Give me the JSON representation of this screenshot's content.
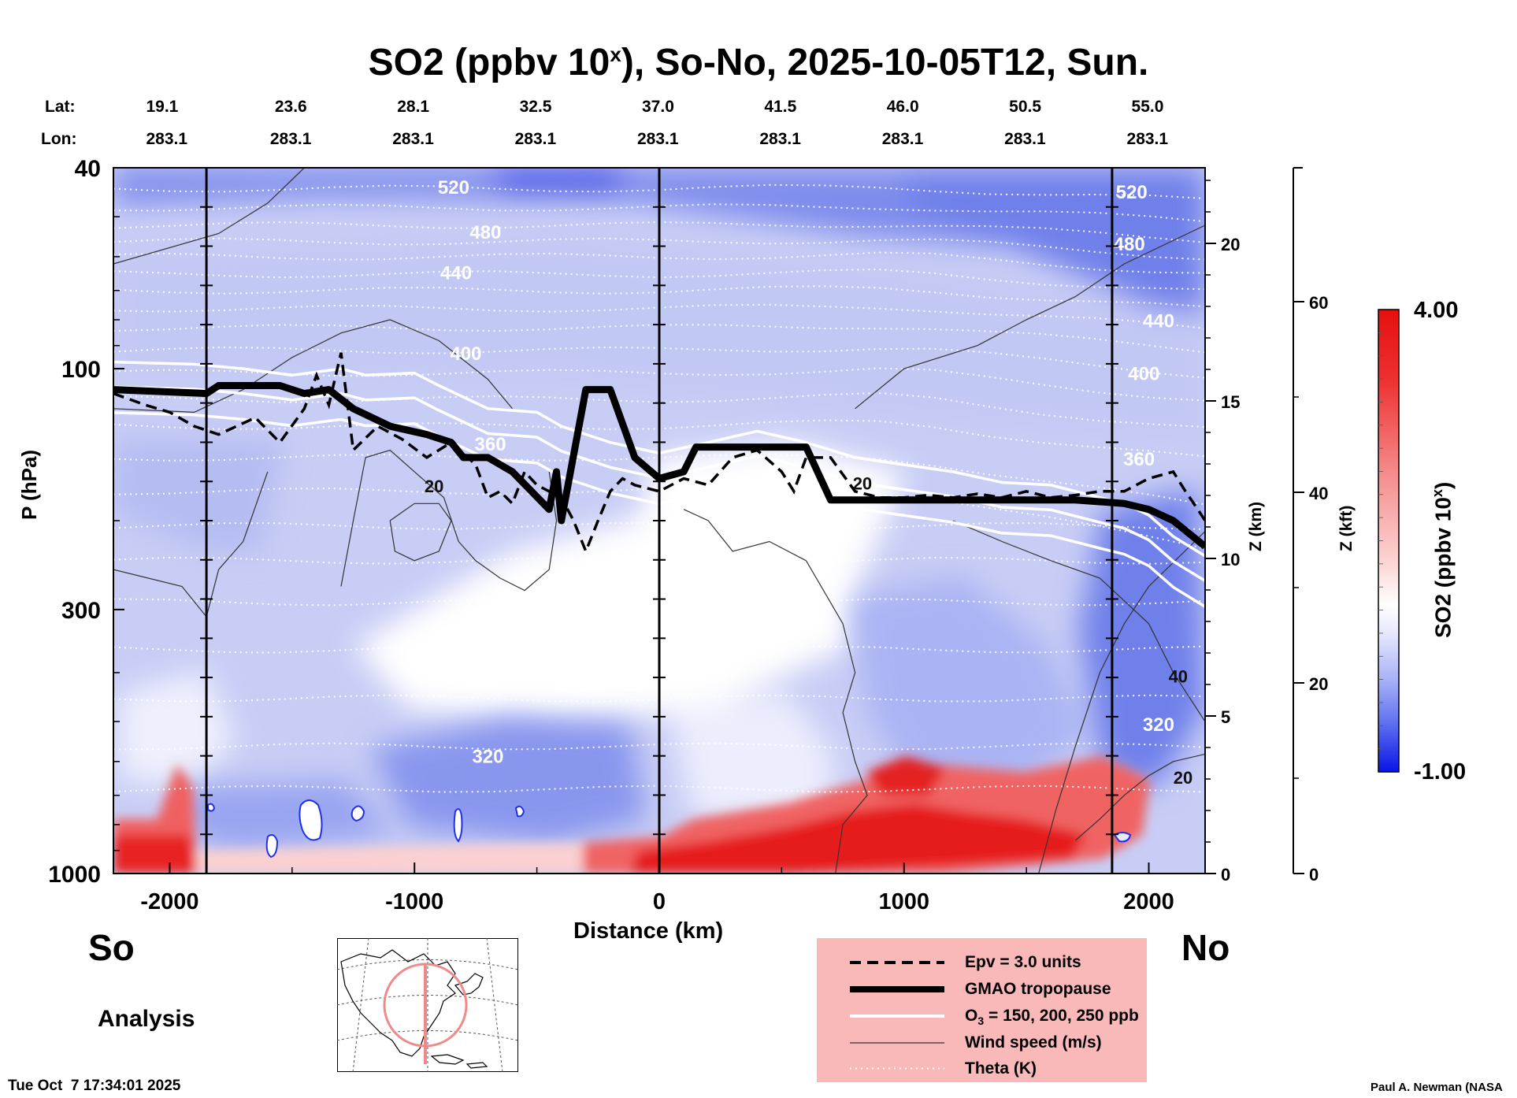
{
  "title": {
    "prefix": "SO2 (ppbv 10",
    "sup": "x",
    "suffix": "), So-No, 2025-10-05T12, Sun."
  },
  "lat_label": "Lat:",
  "lon_label": "Lon:",
  "lat_values": [
    "19.1",
    "23.6",
    "28.1",
    "32.5",
    "37.0",
    "41.5",
    "46.0",
    "50.5",
    "55.0"
  ],
  "lon_values": [
    "283.1",
    "283.1",
    "283.1",
    "283.1",
    "283.1",
    "283.1",
    "283.1",
    "283.1",
    "283.1"
  ],
  "direction_left": "So",
  "direction_right": "No",
  "analysis_label": "Analysis",
  "timestamp": "Tue Oct  7 17:34:01 2025",
  "credit": "Paul A. Newman (NASA",
  "legend": [
    {
      "label": "Epv = 3.0 units",
      "style": "dashed-black"
    },
    {
      "label": "GMAO tropopause",
      "style": "thick-black"
    },
    {
      "label_main": "O",
      "label_sub": "3",
      "label_rest": " = 150, 200, 250 ppb",
      "style": "white"
    },
    {
      "label": "Wind speed (m/s)",
      "style": "thin-black"
    },
    {
      "label": "Theta (K)",
      "style": "dotted-white"
    }
  ],
  "colorbar": {
    "max_label": "4.00",
    "min_label": "-1.00",
    "title_prefix": "SO2 (ppbv 10",
    "title_sup": "x",
    "title_suffix": ")",
    "colors": [
      "#0a14e6",
      "#5a6cf0",
      "#a8b2f6",
      "#e6e8fc",
      "#ffffff",
      "#fcd6d6",
      "#f58a8a",
      "#ee3030",
      "#e60f0f"
    ]
  },
  "colors": {
    "high": "#e61a1a",
    "low": "#2030e6",
    "neutral": "#ffffff",
    "legend_bg": "#f9b9b9"
  },
  "chart_data": {
    "type": "heatmap",
    "title": "SO2 (ppbv 10^x), So-No, 2025-10-05T12, Sun.",
    "xlabel": "Distance (km)",
    "ylabel": "P (hPa)",
    "ylabel_right_1": "Z (km)",
    "ylabel_right_2": "Z (kft)",
    "xlim": [
      -2230,
      2230
    ],
    "ylim": [
      1000,
      40
    ],
    "y_scale": "log",
    "x_ticks": [
      -2000,
      -1000,
      0,
      1000,
      2000
    ],
    "y_ticks": [
      40,
      100,
      300,
      1000
    ],
    "z_km_ticks": [
      0,
      5,
      10,
      15,
      20
    ],
    "z_kft_ticks": [
      0,
      20,
      40,
      60
    ],
    "colorbar_range": [
      -1.0,
      4.0
    ],
    "theta_contour_labels": [
      {
        "value": "520",
        "x": -840,
        "p": 44
      },
      {
        "value": "480",
        "x": -710,
        "p": 54
      },
      {
        "value": "440",
        "x": -830,
        "p": 65
      },
      {
        "value": "400",
        "x": -790,
        "p": 94
      },
      {
        "value": "360",
        "x": -690,
        "p": 142
      },
      {
        "value": "320",
        "x": -700,
        "p": 590
      },
      {
        "value": "520",
        "x": 1930,
        "p": 45
      },
      {
        "value": "480",
        "x": 1920,
        "p": 57
      },
      {
        "value": "440",
        "x": 2040,
        "p": 81
      },
      {
        "value": "400",
        "x": 1980,
        "p": 103
      },
      {
        "value": "360",
        "x": 1960,
        "p": 152
      },
      {
        "value": "320",
        "x": 2040,
        "p": 510
      }
    ],
    "wind_contour_labels": [
      {
        "value": "20",
        "x": -920,
        "p": 172
      },
      {
        "value": "20",
        "x": 830,
        "p": 170
      },
      {
        "value": "40",
        "x": 2120,
        "p": 410
      },
      {
        "value": "20",
        "x": 2140,
        "p": 650
      }
    ],
    "tropopause": {
      "x": [
        -2230,
        -1850,
        -1800,
        -1550,
        -1450,
        -1350,
        -1250,
        -1100,
        -950,
        -850,
        -800,
        -700,
        -600,
        -450,
        -420,
        -400,
        -300,
        -200,
        -100,
        0,
        100,
        150,
        600,
        700,
        1200,
        1700,
        1900,
        2000,
        2100,
        2230
      ],
      "p": [
        110,
        112,
        108,
        108,
        112,
        110,
        120,
        130,
        135,
        140,
        150,
        150,
        160,
        190,
        160,
        200,
        110,
        110,
        150,
        165,
        160,
        143,
        143,
        182,
        182,
        182,
        185,
        190,
        200,
        225
      ]
    },
    "epv_line": {
      "x": [
        -2230,
        -2100,
        -2000,
        -1900,
        -1800,
        -1650,
        -1550,
        -1450,
        -1400,
        -1350,
        -1300,
        -1250,
        -1150,
        -1050,
        -950,
        -850,
        -750,
        -700,
        -650,
        -600,
        -550,
        -500,
        -450,
        -400,
        -350,
        -300,
        -250,
        -200,
        -150,
        -100,
        0,
        100,
        200,
        300,
        400,
        500,
        550,
        600,
        700,
        800,
        900,
        1000,
        1100,
        1200,
        1300,
        1400,
        1500,
        1600,
        1700,
        1800,
        1900,
        2000,
        2100,
        2150,
        2200,
        2230
      ],
      "p": [
        112,
        118,
        122,
        130,
        135,
        125,
        140,
        120,
        103,
        118,
        93,
        145,
        130,
        138,
        150,
        140,
        155,
        180,
        175,
        185,
        160,
        170,
        175,
        180,
        200,
        230,
        200,
        175,
        165,
        170,
        175,
        165,
        170,
        150,
        145,
        160,
        175,
        150,
        150,
        175,
        180,
        180,
        178,
        180,
        177,
        180,
        175,
        180,
        178,
        175,
        175,
        165,
        160,
        175,
        190,
        200
      ]
    }
  }
}
